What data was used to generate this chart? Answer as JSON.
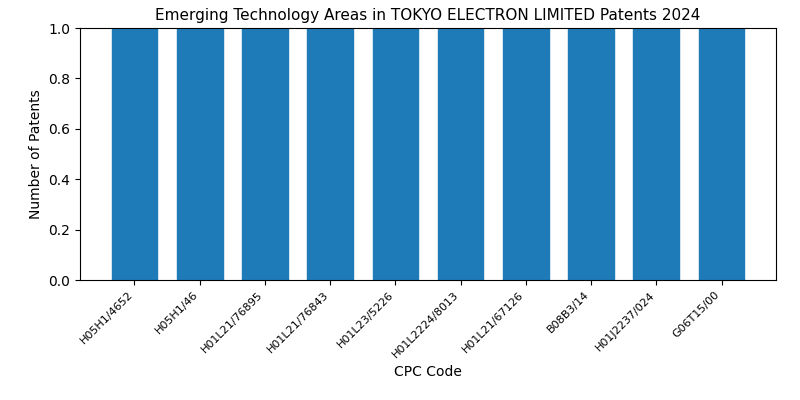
{
  "title": "Emerging Technology Areas in TOKYO ELECTRON LIMITED Patents 2024",
  "xlabel": "CPC Code",
  "ylabel": "Number of Patents",
  "categories": [
    "H05H1/4652",
    "H05H1/46",
    "H01L21/76895",
    "H01L21/76843",
    "H01L23/5226",
    "H01L2224/8013",
    "H01L21/67126",
    "B08B3/14",
    "H01J2237/024",
    "G06T15/00"
  ],
  "values": [
    1,
    1,
    1,
    1,
    1,
    1,
    1,
    1,
    1,
    1
  ],
  "bar_color": "#1f7ab8",
  "ylim": [
    0,
    1.0
  ],
  "yticks": [
    0.0,
    0.2,
    0.4,
    0.6,
    0.8,
    1.0
  ],
  "figsize": [
    8.0,
    4.0
  ],
  "dpi": 100,
  "title_fontsize": 11,
  "label_fontsize": 10,
  "tick_fontsize": 8,
  "bar_width": 0.7
}
